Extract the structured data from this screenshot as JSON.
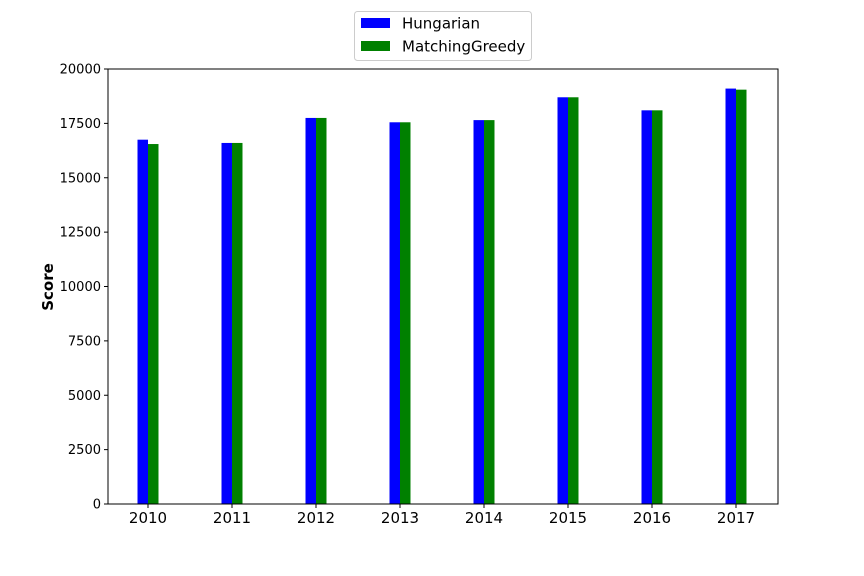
{
  "chart_data": {
    "type": "bar",
    "title": "",
    "xlabel": "",
    "ylabel": "Score",
    "categories": [
      "2010",
      "2011",
      "2012",
      "2013",
      "2014",
      "2015",
      "2016",
      "2017"
    ],
    "series": [
      {
        "name": "Hungarian",
        "color": "#0000ff",
        "values": [
          16750,
          16600,
          17750,
          17550,
          17650,
          18700,
          18100,
          19100
        ]
      },
      {
        "name": "MatchingGreedy",
        "color": "#008000",
        "values": [
          16550,
          16600,
          17750,
          17550,
          17650,
          18700,
          18100,
          19050
        ]
      }
    ],
    "ylim": [
      0,
      20000
    ],
    "yticks": [
      "0",
      "2500",
      "5000",
      "7500",
      "10000",
      "12500",
      "15000",
      "17500",
      "20000"
    ],
    "grid": false,
    "legend_position": "top-center, above plot"
  }
}
